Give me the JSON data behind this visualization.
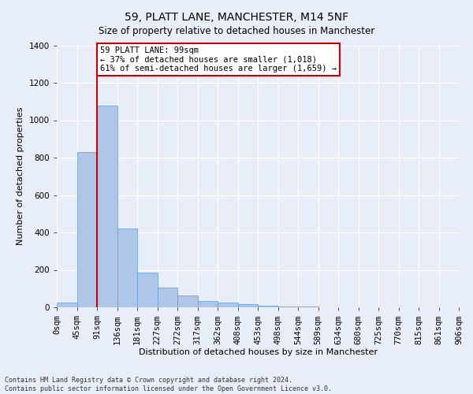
{
  "title": "59, PLATT LANE, MANCHESTER, M14 5NF",
  "subtitle": "Size of property relative to detached houses in Manchester",
  "xlabel": "Distribution of detached houses by size in Manchester",
  "ylabel": "Number of detached properties",
  "bar_values": [
    25,
    830,
    1080,
    420,
    185,
    105,
    62,
    35,
    25,
    15,
    8,
    5,
    3,
    2,
    1,
    1,
    0,
    0,
    0,
    0
  ],
  "bar_labels": [
    "0sqm",
    "45sqm",
    "91sqm",
    "136sqm",
    "181sqm",
    "227sqm",
    "272sqm",
    "317sqm",
    "362sqm",
    "408sqm",
    "453sqm",
    "498sqm",
    "544sqm",
    "589sqm",
    "634sqm",
    "680sqm",
    "725sqm",
    "770sqm",
    "815sqm",
    "861sqm",
    "906sqm"
  ],
  "bar_color": "#aec6e8",
  "bar_edge_color": "#5b9bd5",
  "red_line_index": 2,
  "annotation_text": "59 PLATT LANE: 99sqm\n← 37% of detached houses are smaller (1,018)\n61% of semi-detached houses are larger (1,659) →",
  "annotation_box_color": "#ffffff",
  "annotation_box_edge": "#cc0000",
  "red_line_color": "#cc0000",
  "ylim": [
    0,
    1400
  ],
  "yticks": [
    0,
    200,
    400,
    600,
    800,
    1000,
    1200,
    1400
  ],
  "bg_color": "#e8eef8",
  "grid_color": "#ffffff",
  "footer": "Contains HM Land Registry data © Crown copyright and database right 2024.\nContains public sector information licensed under the Open Government Licence v3.0.",
  "title_fontsize": 10,
  "axis_label_fontsize": 8,
  "tick_fontsize": 7.5
}
